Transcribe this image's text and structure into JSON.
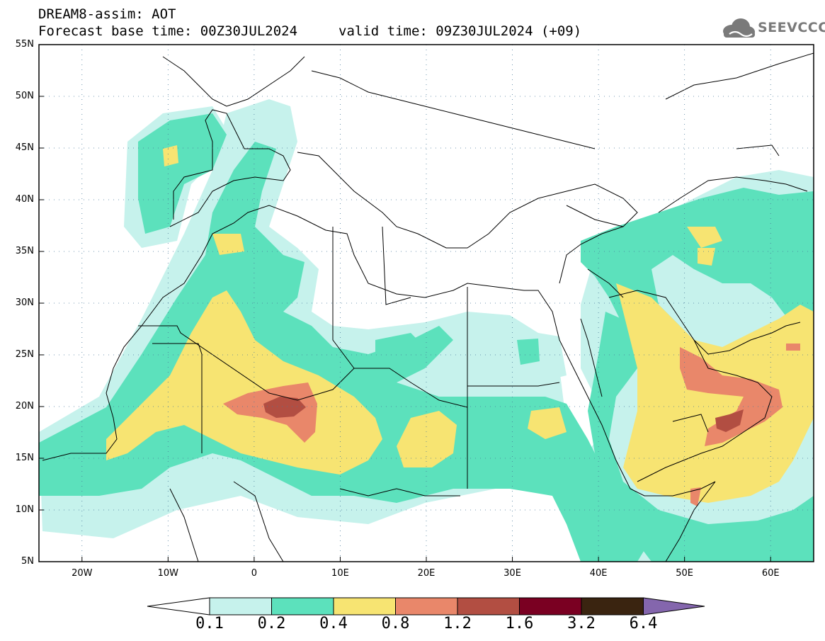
{
  "title": {
    "line1": "DREAM8-assim: AOT",
    "line2": "Forecast base time: 00Z30JUL2024",
    "valid": "valid time: 09Z30JUL2024 (+09)"
  },
  "logo": {
    "text": "SEEVCCC",
    "icon": "cloud-logo-icon"
  },
  "map": {
    "lat_labels": [
      "55N",
      "50N",
      "45N",
      "40N",
      "35N",
      "30N",
      "25N",
      "20N",
      "15N",
      "10N",
      "5N"
    ],
    "lon_labels": [
      "20W",
      "10W",
      "0",
      "10E",
      "20E",
      "30E",
      "40E",
      "50E",
      "60E"
    ]
  },
  "colorbar": {
    "labels": [
      "0.1",
      "0.2",
      "0.4",
      "0.8",
      "1.2",
      "1.6",
      "3.2",
      "6.4"
    ],
    "colors": [
      "#ffffff",
      "#c6f2ec",
      "#5ce1bc",
      "#f7e472",
      "#e9876a",
      "#b24e42",
      "#7a0022",
      "#3a2410",
      "#8466ad"
    ]
  }
}
